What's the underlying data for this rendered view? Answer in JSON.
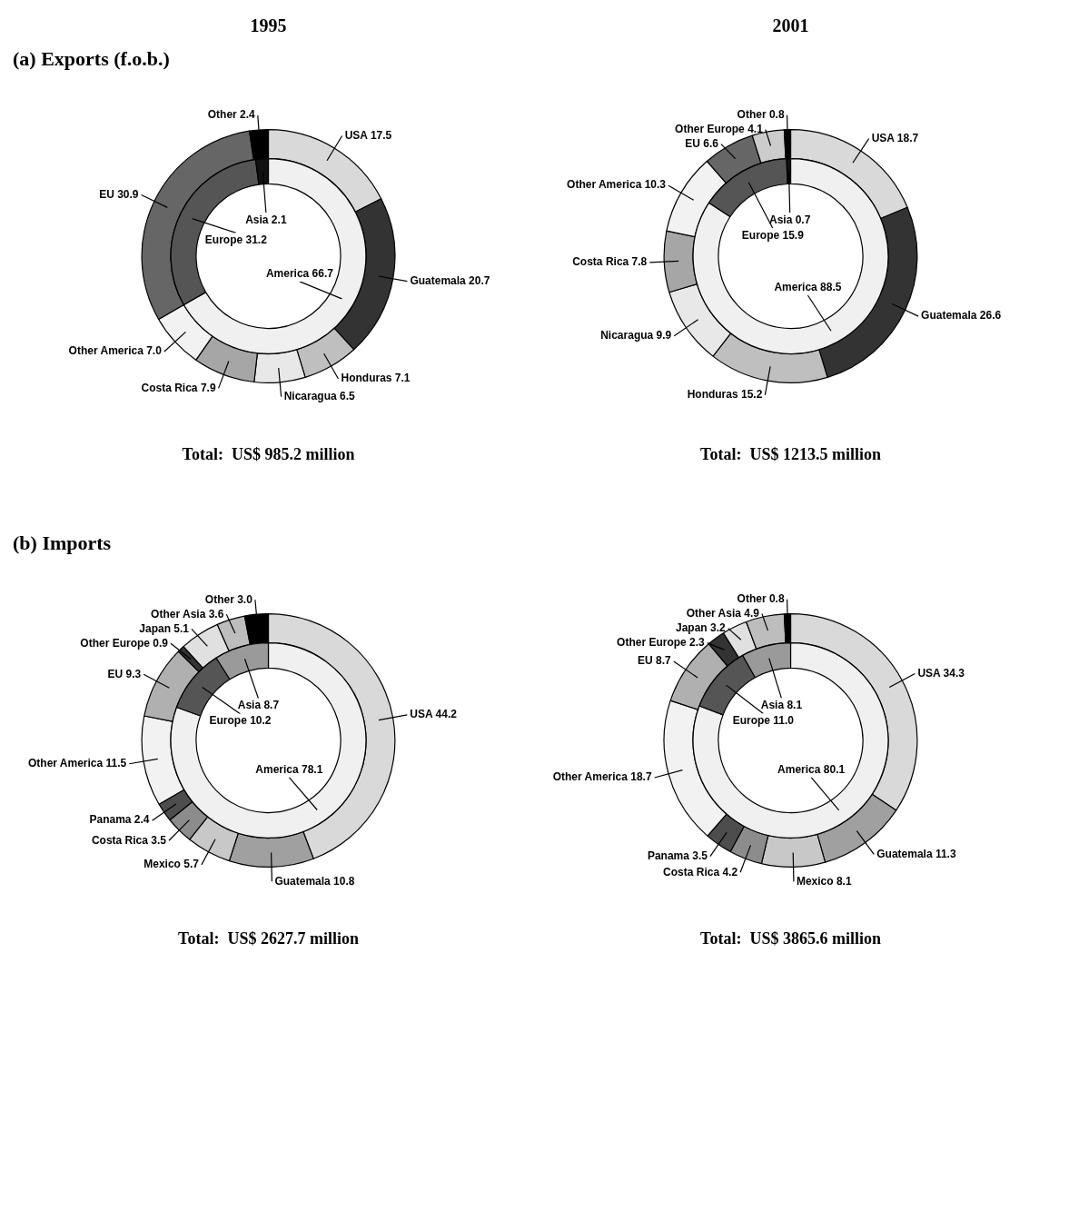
{
  "chart_data": [
    {
      "type": "donut",
      "title": "1995",
      "subtitle": "(a) Exports (f.o.b.)",
      "annotations": [
        "Total:  US$ 985.2 million"
      ],
      "categories": [
        "USA",
        "Guatemala",
        "Honduras",
        "Nicaragua",
        "Costa Rica",
        "Other America",
        "EU",
        "Other"
      ],
      "values": [
        17.5,
        20.7,
        7.1,
        6.5,
        7.9,
        7.0,
        30.9,
        2.4
      ],
      "value_labels": [
        "17.5",
        "20.7",
        "7.1",
        "6.5",
        "7.9",
        "7.0",
        "30.9",
        "2.4"
      ],
      "colors": [
        "#d9d9d9",
        "#333333",
        "#bfbfbf",
        "#e8e8e8",
        "#a6a6a6",
        "#f2f2f2",
        "#666666",
        "#000000"
      ]
    },
    {
      "type": "donut",
      "categories": [
        "America",
        "Europe",
        "Asia"
      ],
      "values": [
        66.7,
        31.2,
        2.1
      ],
      "value_labels": [
        "66.7",
        "31.2",
        "2.1"
      ],
      "colors": [
        "#f0f0f0",
        "#555555",
        "#111111"
      ]
    },
    {
      "type": "donut",
      "title": "2001",
      "annotations": [
        "Total:  US$ 1213.5 million"
      ],
      "categories": [
        "USA",
        "Guatemala",
        "Honduras",
        "Nicaragua",
        "Costa Rica",
        "Other America",
        "EU",
        "Other Europe",
        "Other"
      ],
      "values": [
        18.7,
        26.6,
        15.2,
        9.9,
        7.8,
        10.3,
        6.6,
        4.1,
        0.8
      ],
      "value_labels": [
        "18.7",
        "26.6",
        "15.2",
        "9.9",
        "7.8",
        "10.3",
        "6.6",
        "4.1",
        "0.8"
      ],
      "colors": [
        "#d9d9d9",
        "#333333",
        "#bfbfbf",
        "#e8e8e8",
        "#a6a6a6",
        "#f2f2f2",
        "#666666",
        "#cccccc",
        "#000000"
      ]
    },
    {
      "type": "donut",
      "categories": [
        "America",
        "Europe",
        "Asia"
      ],
      "values": [
        88.5,
        15.9,
        0.7
      ],
      "value_labels": [
        "88.5",
        "15.9",
        "0.7"
      ],
      "colors": [
        "#f0f0f0",
        "#555555",
        "#111111"
      ]
    },
    {
      "type": "donut",
      "subtitle": "(b) Imports",
      "annotations": [
        "Total:  US$ 2627.7 million"
      ],
      "categories": [
        "USA",
        "Guatemala",
        "Mexico",
        "Costa Rica",
        "Panama",
        "Other America",
        "EU",
        "Other Europe",
        "Japan",
        "Other Asia",
        "Other"
      ],
      "values": [
        44.2,
        10.8,
        5.7,
        3.5,
        2.4,
        11.5,
        9.3,
        0.9,
        5.1,
        3.6,
        3.0
      ],
      "value_labels": [
        "44.2",
        "10.8",
        "5.7",
        "3.5",
        "2.4",
        "11.5",
        "9.3",
        "0.9",
        "5.1",
        "3.6",
        "3.0"
      ],
      "colors": [
        "#d9d9d9",
        "#a0a0a0",
        "#c8c8c8",
        "#8c8c8c",
        "#4d4d4d",
        "#f2f2f2",
        "#b0b0b0",
        "#333333",
        "#e0e0e0",
        "#bdbdbd",
        "#000000"
      ]
    },
    {
      "type": "donut",
      "categories": [
        "America",
        "Europe",
        "Asia"
      ],
      "values": [
        78.1,
        10.2,
        8.7
      ],
      "value_labels": [
        "78.1",
        "10.2",
        "8.7"
      ],
      "colors": [
        "#f0f0f0",
        "#555555",
        "#9a9a9a"
      ]
    },
    {
      "type": "donut",
      "annotations": [
        "Total:  US$ 3865.6 million"
      ],
      "categories": [
        "USA",
        "Guatemala",
        "Mexico",
        "Costa Rica",
        "Panama",
        "Other America",
        "EU",
        "Other Europe",
        "Japan",
        "Other Asia",
        "Other"
      ],
      "values": [
        34.3,
        11.3,
        8.1,
        4.2,
        3.5,
        18.7,
        8.7,
        2.3,
        3.2,
        4.9,
        0.8
      ],
      "value_labels": [
        "34.3",
        "11.3",
        "8.1",
        "4.2",
        "3.5",
        "18.7",
        "8.7",
        "2.3",
        "3.2",
        "4.9",
        "0.8"
      ],
      "colors": [
        "#d9d9d9",
        "#a0a0a0",
        "#c8c8c8",
        "#8c8c8c",
        "#4d4d4d",
        "#f2f2f2",
        "#b0b0b0",
        "#333333",
        "#e0e0e0",
        "#bdbdbd",
        "#000000"
      ]
    },
    {
      "type": "donut",
      "categories": [
        "America",
        "Europe",
        "Asia"
      ],
      "values": [
        80.1,
        11.0,
        8.1
      ],
      "value_labels": [
        "80.1",
        "11.0",
        "8.1"
      ],
      "colors": [
        "#f0f0f0",
        "#555555",
        "#9a9a9a"
      ]
    }
  ]
}
